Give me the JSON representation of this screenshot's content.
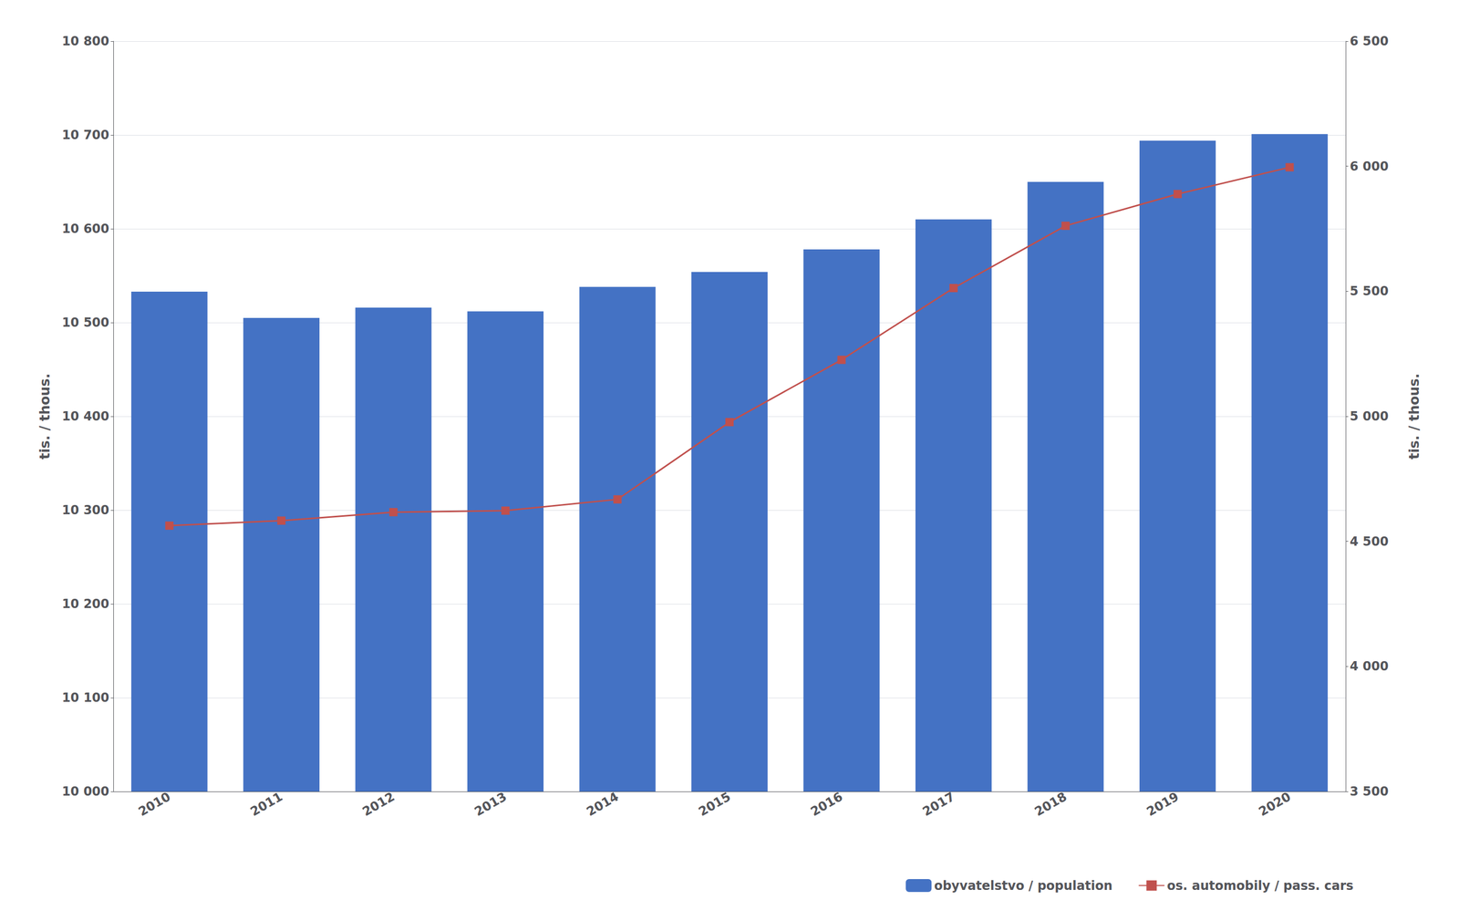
{
  "chart_data": {
    "type": "bar",
    "categories": [
      "2010",
      "2011",
      "2012",
      "2013",
      "2014",
      "2015",
      "2016",
      "2017",
      "2018",
      "2019",
      "2020"
    ],
    "series": [
      {
        "name": "obyvatelstvo / population",
        "type": "bar",
        "color": "#4472C4",
        "values": [
          10533,
          10505,
          10516,
          10512,
          10538,
          10554,
          10578,
          10610,
          10650,
          10694,
          10701
        ]
      },
      {
        "name": "os. automobily / pass. cars",
        "type": "line",
        "color": "#C0504D",
        "marker": "square",
        "axis": "y2",
        "values": [
          4563,
          4583,
          4617,
          4623,
          4668,
          4977,
          5226,
          5513,
          5762,
          5889,
          5996
        ]
      }
    ],
    "ylabel": "tis. / thous.",
    "y2label": "tis. / thous.",
    "ylim": [
      10000,
      10800
    ],
    "yticks": [
      {
        "value": 10000,
        "label": "10 000"
      },
      {
        "value": 10100,
        "label": "10 100"
      },
      {
        "value": 10200,
        "label": "10 200"
      },
      {
        "value": 10300,
        "label": "10 300"
      },
      {
        "value": 10400,
        "label": "10 400"
      },
      {
        "value": 10500,
        "label": "10 500"
      },
      {
        "value": 10600,
        "label": "10 600"
      },
      {
        "value": 10700,
        "label": "10 700"
      },
      {
        "value": 10800,
        "label": "10 800"
      }
    ],
    "y2lim": [
      3500,
      6500
    ],
    "y2ticks": [
      {
        "value": 3500,
        "label": "3 500"
      },
      {
        "value": 4000,
        "label": "4 000"
      },
      {
        "value": 4500,
        "label": "4 500"
      },
      {
        "value": 5000,
        "label": "5 000"
      },
      {
        "value": 5500,
        "label": "5 500"
      },
      {
        "value": 6000,
        "label": "6 000"
      },
      {
        "value": 6500,
        "label": "6 500"
      }
    ],
    "grid": true,
    "legend": "lower right"
  }
}
